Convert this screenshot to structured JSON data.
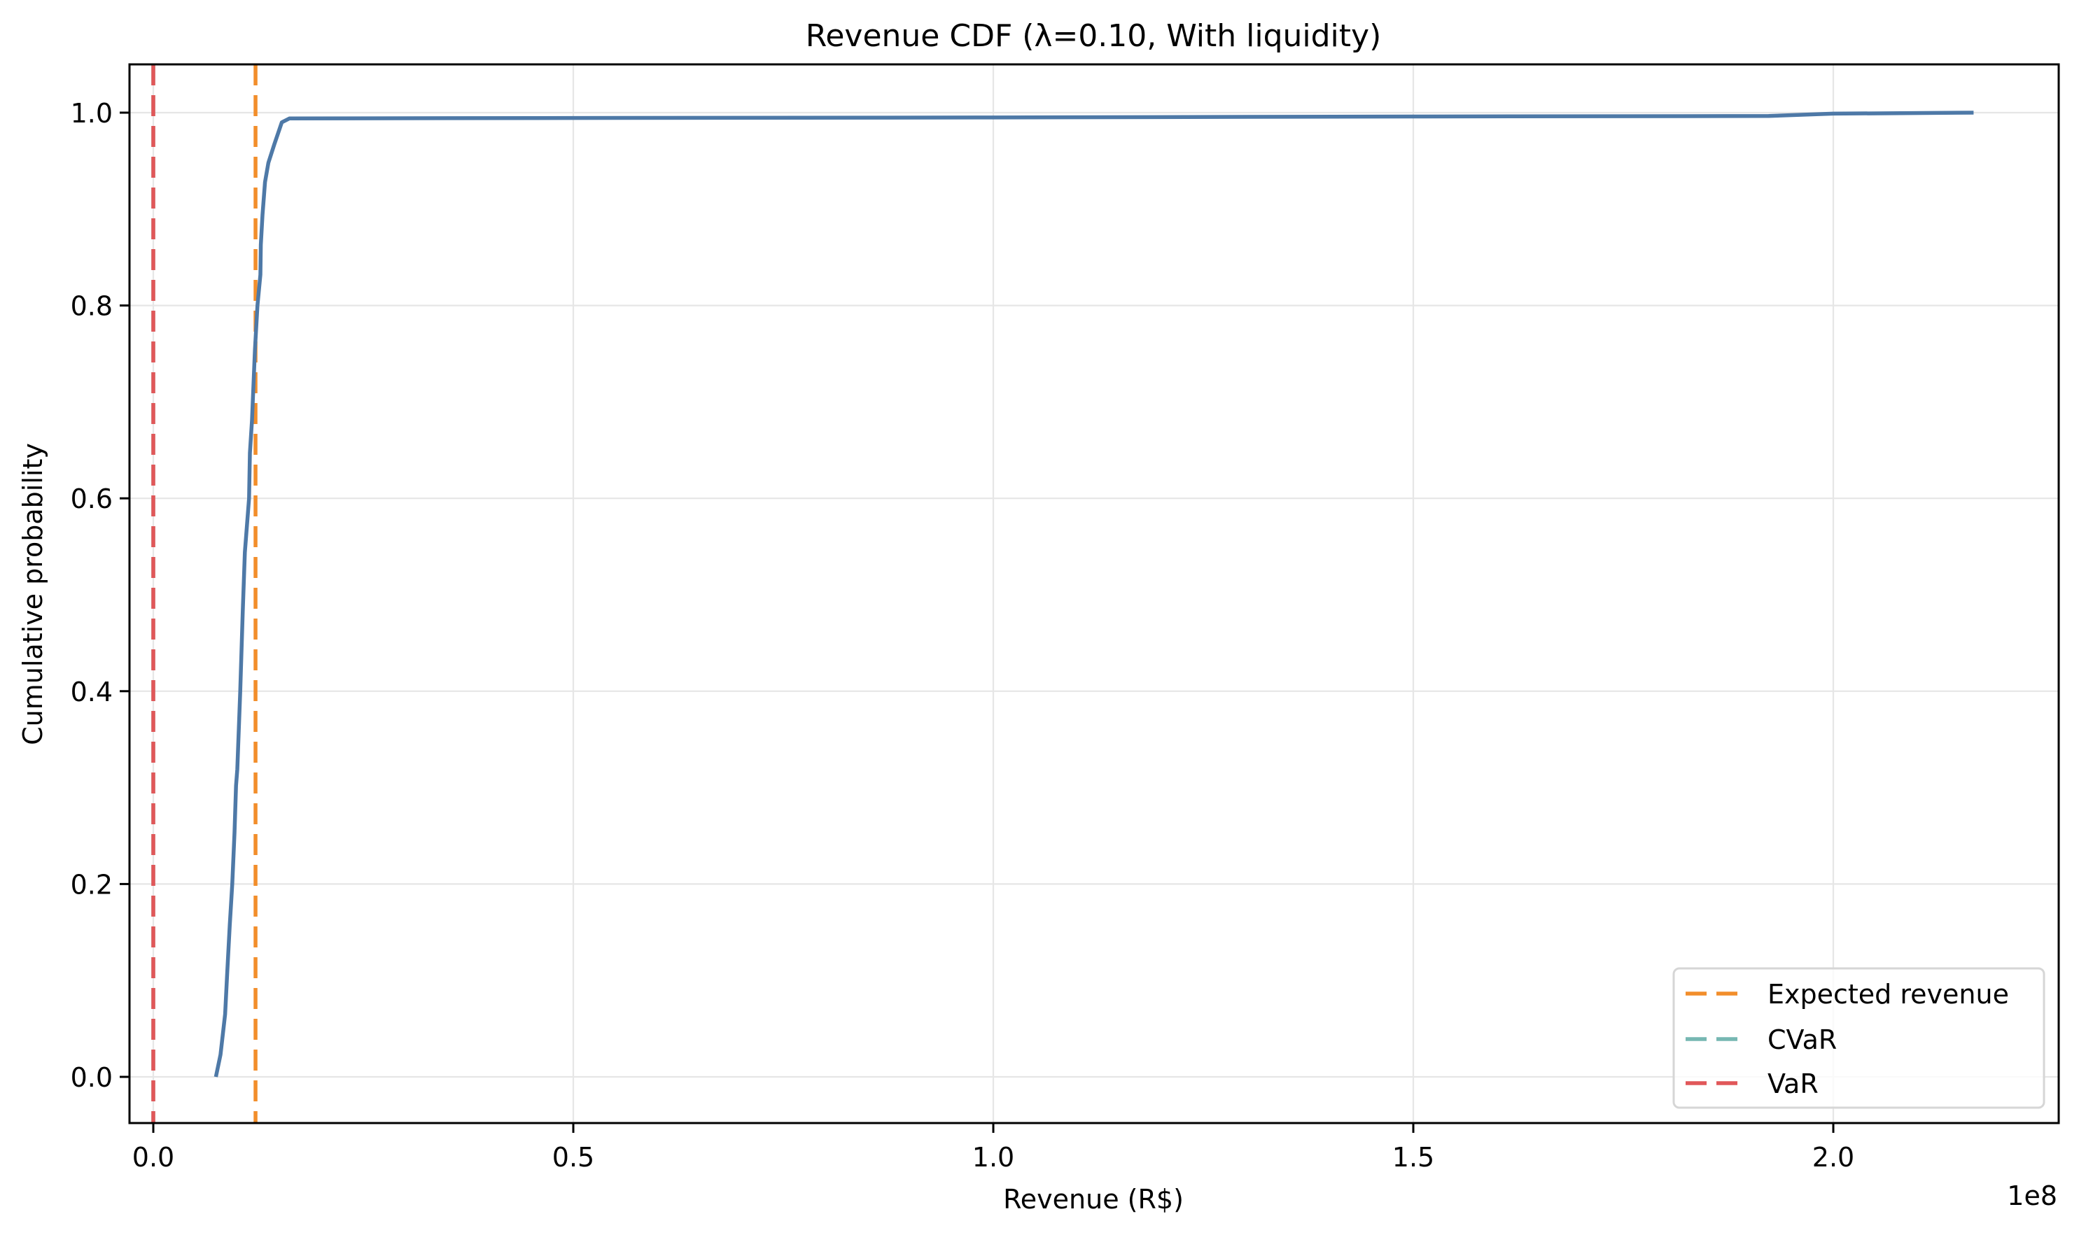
{
  "chart_data": {
    "type": "line",
    "title": "Revenue CDF (λ=0.10, With liquidity)",
    "xlabel": "Revenue (R$)",
    "ylabel": "Cumulative probability",
    "x_offset_text": "1e8",
    "x_scale": 100000000,
    "xlim": [
      -0.029,
      2.268
    ],
    "ylim": [
      -0.049,
      1.052
    ],
    "grid": true,
    "legend_position": "lower right",
    "x_ticks": [
      0.0,
      0.5,
      1.0,
      1.5,
      2.0
    ],
    "x_tick_labels": [
      "0.0",
      "0.5",
      "1.0",
      "1.5",
      "2.0"
    ],
    "y_ticks": [
      0.0,
      0.2,
      0.4,
      0.6,
      0.8,
      1.0
    ],
    "y_tick_labels": [
      "0.0",
      "0.2",
      "0.4",
      "0.6",
      "0.8",
      "1.0"
    ],
    "series": [
      {
        "name": "Revenue CDF",
        "style": "solid",
        "color": "#4e79a7",
        "in_legend": false,
        "x": [
          0.0745,
          0.08,
          0.0855,
          0.088,
          0.091,
          0.094,
          0.0967,
          0.0985,
          0.1,
          0.1035,
          0.1065,
          0.109,
          0.114,
          0.115,
          0.1175,
          0.121,
          0.124,
          0.1275,
          0.128,
          0.13,
          0.133,
          0.137,
          0.144,
          0.153,
          0.162,
          0.5,
          1.0,
          1.5,
          1.923,
          2.0,
          2.167
        ],
        "y": [
          0.0,
          0.023,
          0.065,
          0.108,
          0.157,
          0.2,
          0.253,
          0.302,
          0.319,
          0.4,
          0.483,
          0.544,
          0.6,
          0.647,
          0.681,
          0.754,
          0.8,
          0.832,
          0.863,
          0.894,
          0.928,
          0.948,
          0.967,
          0.99,
          0.994,
          0.9945,
          0.995,
          0.996,
          0.9965,
          0.999,
          1.0
        ]
      }
    ],
    "vlines": [
      {
        "name": "Expected revenue",
        "x": 0.1217,
        "color": "#f28e2b",
        "style": "dashed"
      },
      {
        "name": "CVaR",
        "x": 0.0,
        "color": "#76b7b2",
        "style": "dashed"
      },
      {
        "name": "VaR",
        "x": 0.0,
        "color": "#e15759",
        "style": "dashed"
      }
    ]
  },
  "legend": {
    "items": [
      {
        "label": "Expected revenue",
        "color": "#f28e2b"
      },
      {
        "label": "CVaR",
        "color": "#76b7b2"
      },
      {
        "label": "VaR",
        "color": "#e15759"
      }
    ]
  }
}
